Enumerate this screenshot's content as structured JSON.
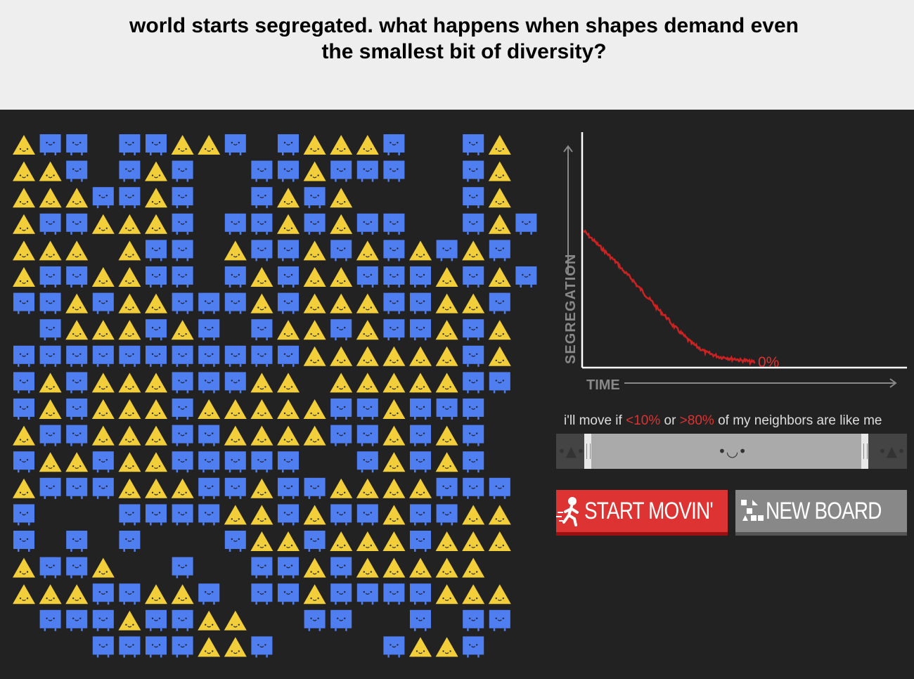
{
  "header": {
    "title_line1": "world starts segregated. what happens when shapes demand even",
    "title_line2": "the smallest bit of diversity?"
  },
  "colors": {
    "triangle": "#f2cf3a",
    "square": "#4f7ef0",
    "accent": "#dd3333",
    "background": "#222222",
    "header_bg": "#eeeeee"
  },
  "board": {
    "legend": "T = triangle, S = square, . = empty",
    "rows": [
      "TSS.SSTTS.STTTS..ST",
      "TTS.STS..SSTSSS..ST",
      "TTTSSTS..STST....ST",
      "TSSTTTS.SSTSTSS..STS",
      "TTT.TSS.TSSTSTSTSTS",
      "TSSTTSS.STSTTSSSTSTS",
      "SSTSTTSSSTSTTTSSTTS",
      ".STTTSTS.STTSTSSTST",
      "SSSSSSSSSSSTTTTTTST",
      "STSTTTSSSTT.TTTTTSS",
      "STSTTTSTTTTTSSTSSS",
      "TSSTTTSSTTTTSSTSTS",
      "STTSTTSSSSS..STSTS",
      "TSSSTTTSSTSSTTTTSSS",
      "S...SSSSTTSTSSTSSTT",
      "S.S.S...STTSTTTSTTT",
      "TSST..S..SSTSTTTTT",
      "TTTSSTTS.SSTSSSSTTT",
      ".SSSTSSTT..SS..S.SS",
      "...SSSSTTS....STTS"
    ]
  },
  "chart": {
    "ylabel": "SEGREGATION",
    "xlabel": "TIME",
    "current_value_label": "0%",
    "series": [
      {
        "name": "segregation",
        "color": "#cc2222",
        "points": [
          0.83,
          0.8,
          0.77,
          0.74,
          0.71,
          0.68,
          0.65,
          0.62,
          0.58,
          0.55,
          0.52,
          0.48,
          0.45,
          0.41,
          0.38,
          0.34,
          0.31,
          0.28,
          0.24,
          0.21,
          0.18,
          0.15,
          0.12,
          0.1,
          0.08,
          0.06,
          0.05,
          0.04,
          0.03,
          0.03,
          0.02,
          0.02,
          0.01,
          0.01,
          0.0,
          0.0
        ]
      }
    ]
  },
  "slider": {
    "label_prefix": "i'll move if ",
    "low": "<10%",
    "middle": " or ",
    "high": ">80%",
    "label_suffix": " of my neighbors are like me",
    "low_threshold": 0.1,
    "high_threshold": 0.8,
    "face_left": "•▲•",
    "face_middle": "•◡•",
    "face_right": "•▲•"
  },
  "buttons": {
    "start": "START MOVIN'",
    "new_board": "NEW BOARD"
  }
}
